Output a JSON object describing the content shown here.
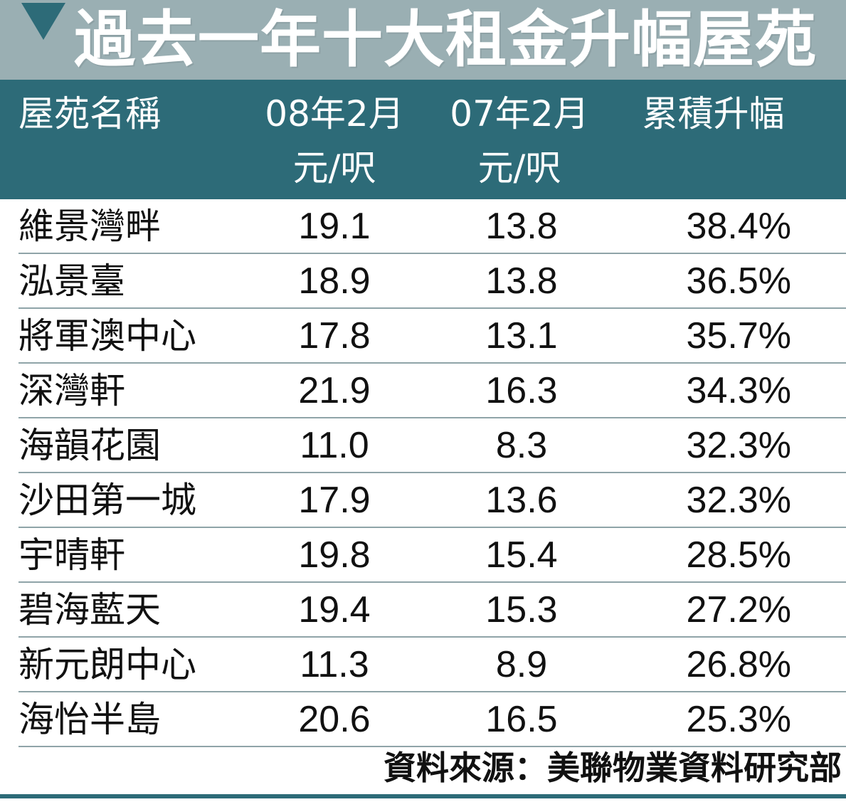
{
  "title": "過去一年十大租金升幅屋苑",
  "headers": {
    "estate": "屋苑名稱",
    "feb08": "08年2月",
    "feb07": "07年2月",
    "unit08": "元/呎",
    "unit07": "元/呎",
    "change": "累積升幅"
  },
  "colors": {
    "title_bar": "#9aafb3",
    "header_bar": "#2d6b78",
    "title_text": "#ffffff",
    "divider": "#8fa4a8"
  },
  "chart_data": {
    "type": "table",
    "title": "過去一年十大租金升幅屋苑",
    "columns": [
      "屋苑名稱",
      "08年2月 元/呎",
      "07年2月 元/呎",
      "累積升幅"
    ],
    "rows": [
      {
        "name": "維景灣畔",
        "feb08": "19.1",
        "feb07": "13.8",
        "change": "38.4%"
      },
      {
        "name": "泓景臺",
        "feb08": "18.9",
        "feb07": "13.8",
        "change": "36.5%"
      },
      {
        "name": "將軍澳中心",
        "feb08": "17.8",
        "feb07": "13.1",
        "change": "35.7%"
      },
      {
        "name": "深灣軒",
        "feb08": "21.9",
        "feb07": "16.3",
        "change": "34.3%"
      },
      {
        "name": "海韻花園",
        "feb08": "11.0",
        "feb07": "8.3",
        "change": "32.3%"
      },
      {
        "name": "沙田第一城",
        "feb08": "17.9",
        "feb07": "13.6",
        "change": "32.3%"
      },
      {
        "name": "宇晴軒",
        "feb08": "19.8",
        "feb07": "15.4",
        "change": "28.5%"
      },
      {
        "name": "碧海藍天",
        "feb08": "19.4",
        "feb07": "15.3",
        "change": "27.2%"
      },
      {
        "name": "新元朗中心",
        "feb08": "11.3",
        "feb07": "8.9",
        "change": "26.8%"
      },
      {
        "name": "海怡半島",
        "feb08": "20.6",
        "feb07": "16.5",
        "change": "25.3%"
      }
    ]
  },
  "source": "資料來源：美聯物業資料研究部"
}
